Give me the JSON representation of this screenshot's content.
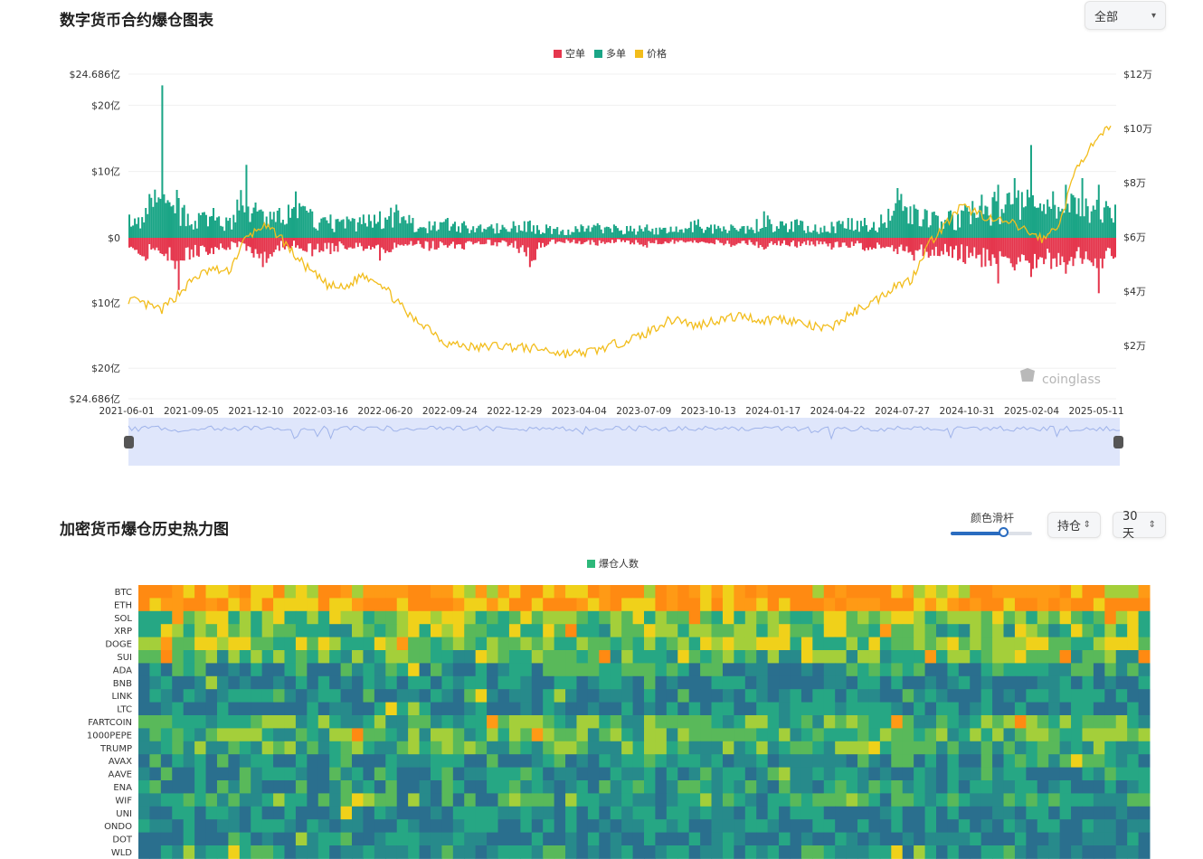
{
  "top_chart": {
    "title": "数字货币合约爆仓图表",
    "dropdown": {
      "selected": "全部"
    },
    "legend": [
      {
        "label": "空单",
        "color": "#e5364d"
      },
      {
        "label": "多单",
        "color": "#1aa586"
      },
      {
        "label": "价格",
        "color": "#f2bd1c"
      }
    ],
    "watermark": "coinglass"
  },
  "heatmap": {
    "title": "加密货币爆仓历史热力图",
    "color_slider_label": "颜色滑杆",
    "color_slider_value": 0.65,
    "metric_select": "持仓",
    "period_select": "30天",
    "legend_label": "爆仓人数",
    "legend_color": "#2db87a"
  },
  "chart_data": [
    {
      "type": "bar+line",
      "title": "",
      "x_ticks": [
        "2021-06-01",
        "2021-09-05",
        "2021-12-10",
        "2022-03-16",
        "2022-06-20",
        "2022-09-24",
        "2022-12-29",
        "2023-04-04",
        "2023-07-09",
        "2023-10-13",
        "2024-01-17",
        "2024-04-22",
        "2024-07-27",
        "2024-10-31",
        "2025-02-04",
        "2025-05-11"
      ],
      "left_axis": {
        "ticks": [
          "$24.686亿",
          "$20亿",
          "$10亿",
          "$0",
          "$10亿",
          "$20亿",
          "$24.686亿"
        ],
        "range": [
          -24.686,
          24.686
        ],
        "unit": "亿"
      },
      "right_axis": {
        "ticks": [
          "$12万",
          "$10万",
          "$8万",
          "$6万",
          "$4万",
          "$2万"
        ],
        "range": [
          0,
          12
        ],
        "unit": "万"
      },
      "series": [
        {
          "name": "空单",
          "kind": "bar-negative",
          "color": "#e5364d",
          "unit": "亿",
          "values": [
            -1.5,
            -3.5,
            -2.5,
            -8,
            -3,
            -2.5,
            -1.8,
            -2,
            -4.5,
            -2,
            -1.5,
            -3,
            -2.5,
            -1.8,
            -2,
            -3.5,
            -1.5,
            -1.2,
            -2,
            -1.5,
            -1.8,
            -1,
            -1.3,
            -1.5,
            -4.5,
            -1.2,
            -0.8,
            -1,
            -1.2,
            -0.8,
            -1,
            -1.5,
            -0.9,
            -1.2,
            -0.8,
            -1,
            -1.4,
            -1.1,
            -1.8,
            -1.2,
            -1.5,
            -1.3,
            -1.8,
            -1.5,
            -2,
            -1.6,
            -2.5,
            -3.5,
            -3,
            -2.8,
            -4,
            -4.5,
            -7,
            -5,
            -6,
            -6.5,
            -5.5,
            -4,
            -8.5,
            -3
          ]
        },
        {
          "name": "多单",
          "kind": "bar-positive",
          "color": "#1aa586",
          "unit": "亿",
          "values": [
            3.5,
            4.5,
            23,
            6,
            4,
            4.5,
            3,
            11,
            4,
            4.5,
            7,
            4,
            3.5,
            3.2,
            3.5,
            4,
            5,
            3,
            2.5,
            3,
            2.5,
            2,
            2.2,
            2.5,
            2.6,
            2,
            1.5,
            2,
            2.2,
            2,
            1.8,
            2,
            1.5,
            2,
            2.8,
            2,
            2,
            1.8,
            4,
            2.5,
            2.8,
            2,
            2.4,
            3,
            3,
            3.5,
            7.5,
            5,
            4.5,
            4,
            5,
            6.5,
            8,
            9,
            14,
            9,
            8,
            9,
            8,
            5
          ]
        },
        {
          "name": "价格",
          "kind": "line",
          "color": "#f2bd1c",
          "unit": "万",
          "values": [
            3.7,
            3.5,
            3.3,
            3.9,
            4.5,
            4.8,
            4.7,
            5.9,
            6.4,
            6.1,
            5.3,
            4.7,
            4.2,
            4.1,
            4.6,
            4.4,
            3.7,
            3.0,
            2.7,
            2.1,
            2.0,
            1.9,
            2.0,
            1.95,
            1.9,
            1.85,
            1.7,
            1.7,
            1.8,
            2.0,
            2.2,
            2.4,
            2.8,
            3.0,
            2.7,
            2.9,
            3.0,
            3.1,
            2.9,
            3.0,
            2.9,
            2.7,
            2.6,
            3.0,
            3.4,
            3.7,
            4.2,
            4.4,
            5.7,
            6.4,
            7.1,
            6.9,
            6.6,
            6.5,
            6.2,
            5.9,
            6.6,
            8.7,
            9.4,
            10.1
          ]
        }
      ]
    },
    {
      "type": "heatmap",
      "title": "加密货币爆仓历史热力图",
      "y_categories": [
        "BTC",
        "ETH",
        "SOL",
        "XRP",
        "DOGE",
        "SUI",
        "ADA",
        "BNB",
        "LINK",
        "LTC",
        "FARTCOIN",
        "1000PEPE",
        "TRUMP",
        "AVAX",
        "AAVE",
        "ENA",
        "WIF",
        "UNI",
        "ONDO",
        "DOT",
        "WLD"
      ],
      "columns": 90,
      "color_scale": [
        "#2a6f8e",
        "#278a8b",
        "#26a784",
        "#59b95a",
        "#a4cf3a",
        "#f0d11a",
        "#ff9a15",
        "#ff8a12"
      ],
      "series": [
        {
          "name": "爆仓人数"
        }
      ]
    }
  ]
}
